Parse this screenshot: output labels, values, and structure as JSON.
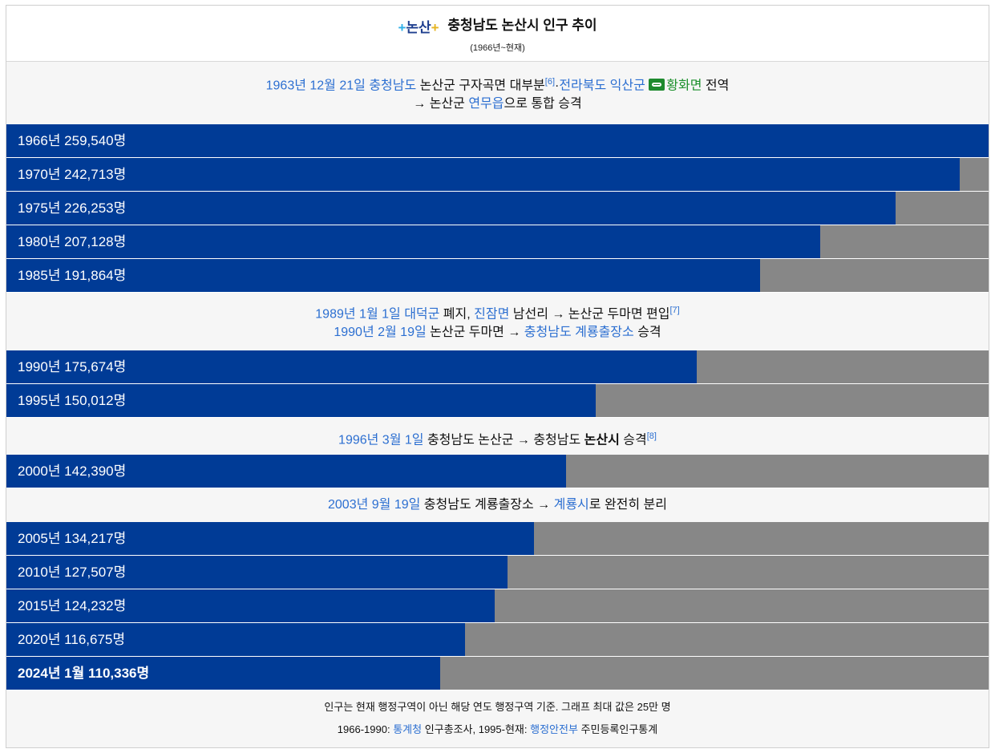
{
  "header": {
    "logo_text": "논산",
    "title": "충청남도 논산시 인구 추이",
    "subtitle": "(1966년~현재)"
  },
  "notes": [
    {
      "lines": [
        [
          {
            "t": "1963년 12월 21일",
            "c": "lnk"
          },
          {
            "t": " "
          },
          {
            "t": "충청남도",
            "c": "lnk"
          },
          {
            "t": " 논산군 구자곡면 대부분"
          },
          {
            "t": "[6]",
            "c": "sup"
          },
          {
            "t": "·"
          },
          {
            "t": "전라북도",
            "c": "lnk"
          },
          {
            "t": " "
          },
          {
            "t": "익산군",
            "c": "lnk"
          },
          {
            "t": " "
          },
          {
            "t": "",
            "c": "chain"
          },
          {
            "t": "황화면",
            "c": "lnkg"
          },
          {
            "t": " 전역"
          }
        ],
        [
          {
            "t": "→ 논산군 "
          },
          {
            "t": "연무읍",
            "c": "lnk"
          },
          {
            "t": "으로 통합 승격"
          }
        ]
      ]
    },
    {
      "lines": [
        [
          {
            "t": "1989년 1월 1일",
            "c": "lnk"
          },
          {
            "t": " "
          },
          {
            "t": "대덕군",
            "c": "lnk"
          },
          {
            "t": " 폐지, "
          },
          {
            "t": "진잠면",
            "c": "lnk"
          },
          {
            "t": " 남선리 → 논산군 두마면 편입"
          },
          {
            "t": "[7]",
            "c": "sup"
          }
        ],
        [
          {
            "t": "1990년 2월 19일",
            "c": "lnk"
          },
          {
            "t": " 논산군 두마면 → "
          },
          {
            "t": "충청남도",
            "c": "lnk"
          },
          {
            "t": " "
          },
          {
            "t": "계룡출장소",
            "c": "lnk"
          },
          {
            "t": " 승격"
          }
        ]
      ]
    },
    {
      "lines": [
        [
          {
            "t": "1996년 3월 1일",
            "c": "lnk"
          },
          {
            "t": " 충청남도 논산군 → 충청남도 "
          },
          {
            "t": "논산시",
            "c": "bold"
          },
          {
            "t": " 승격"
          },
          {
            "t": "[8]",
            "c": "sup"
          }
        ]
      ]
    },
    {
      "lines": [
        [
          {
            "t": "2003년 9월 19일",
            "c": "lnk"
          },
          {
            "t": " 충청남도 계룡출장소 → "
          },
          {
            "t": "계룡시",
            "c": "lnk"
          },
          {
            "t": "로 완전히 분리"
          }
        ]
      ]
    }
  ],
  "chart_data": {
    "type": "bar",
    "orientation": "horizontal",
    "xlim": [
      0,
      250000
    ],
    "unit": "명",
    "categories": [
      "1966년",
      "1970년",
      "1975년",
      "1980년",
      "1985년",
      "1990년",
      "1995년",
      "2000년",
      "2005년",
      "2010년",
      "2015년",
      "2020년",
      "2024년 1월"
    ],
    "values": [
      259540,
      242713,
      226253,
      207128,
      191864,
      175674,
      150012,
      142390,
      134217,
      127507,
      124232,
      116675,
      110336
    ],
    "labels": [
      "1966년 259,540명",
      "1970년 242,713명",
      "1975년 226,253명",
      "1980년 207,128명",
      "1985년 191,864명",
      "1990년 175,674명",
      "1995년 150,012명",
      "2000년 142,390명",
      "2005년 134,217명",
      "2010년 127,507명",
      "2015년 124,232명",
      "2020년 116,675명",
      "2024년 1월 110,336명"
    ],
    "bold_last": true,
    "colors": {
      "fill": "#003b96",
      "track": "#878787"
    }
  },
  "footer": {
    "line1": "인구는 현재 행정구역이 아닌 해당 연도 행정구역 기준. 그래프 최대 값은 25만 명",
    "line2_parts": [
      {
        "t": "1966-1990: "
      },
      {
        "t": "통계청",
        "c": "lnk"
      },
      {
        "t": " 인구총조사, 1995-현재: "
      },
      {
        "t": "행정안전부",
        "c": "lnk"
      },
      {
        "t": " 주민등록인구통계"
      }
    ]
  }
}
